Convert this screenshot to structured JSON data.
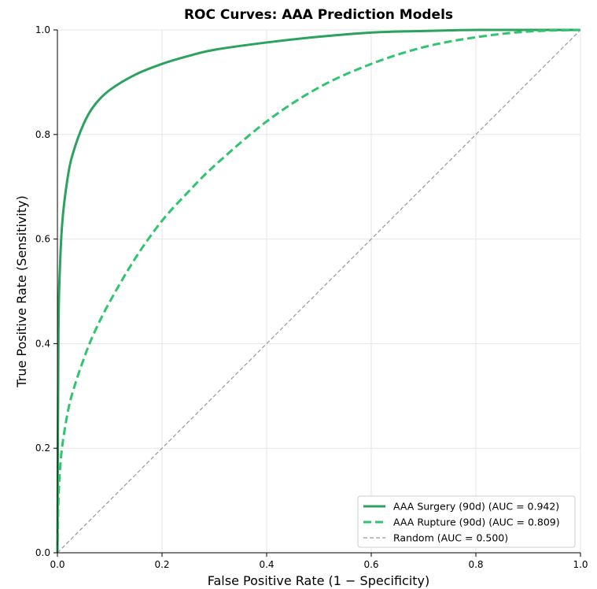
{
  "chart_data": {
    "type": "line",
    "title": "ROC Curves: AAA Prediction Models",
    "xlabel": "False Positive Rate (1 − Specificity)",
    "ylabel": "True Positive Rate (Sensitivity)",
    "xlim": [
      0.0,
      1.0
    ],
    "ylim": [
      0.0,
      1.0
    ],
    "xticks": [
      "0.0",
      "0.2",
      "0.4",
      "0.6",
      "0.8",
      "1.0"
    ],
    "yticks": [
      "0.0",
      "0.2",
      "0.4",
      "0.6",
      "0.8",
      "1.0"
    ],
    "grid": true,
    "legend_position": "bottom-right",
    "series": [
      {
        "name": "AAA Surgery (90d) (AUC = 0.942)",
        "color": "#2ca25f",
        "style": "solid",
        "x": [
          0.0,
          0.002,
          0.005,
          0.01,
          0.02,
          0.03,
          0.05,
          0.07,
          0.1,
          0.15,
          0.2,
          0.25,
          0.3,
          0.4,
          0.5,
          0.6,
          0.7,
          0.8,
          0.9,
          1.0
        ],
        "y": [
          0.0,
          0.42,
          0.55,
          0.64,
          0.72,
          0.765,
          0.82,
          0.855,
          0.885,
          0.915,
          0.935,
          0.95,
          0.962,
          0.976,
          0.987,
          0.995,
          0.998,
          1.0,
          1.0,
          1.0
        ]
      },
      {
        "name": "AAA Rupture (90d) (AUC = 0.809)",
        "color": "#31c46e",
        "style": "dashed",
        "x": [
          0.0,
          0.002,
          0.005,
          0.01,
          0.02,
          0.03,
          0.05,
          0.07,
          0.1,
          0.15,
          0.2,
          0.25,
          0.3,
          0.4,
          0.5,
          0.6,
          0.7,
          0.8,
          0.9,
          1.0
        ],
        "y": [
          0.0,
          0.1,
          0.16,
          0.21,
          0.27,
          0.31,
          0.37,
          0.42,
          0.48,
          0.565,
          0.635,
          0.69,
          0.74,
          0.825,
          0.89,
          0.935,
          0.967,
          0.986,
          0.997,
          1.0
        ]
      },
      {
        "name": "Random (AUC = 0.500)",
        "color": "#999999",
        "style": "dashed-thin",
        "x": [
          0.0,
          1.0
        ],
        "y": [
          0.0,
          1.0
        ]
      }
    ]
  }
}
